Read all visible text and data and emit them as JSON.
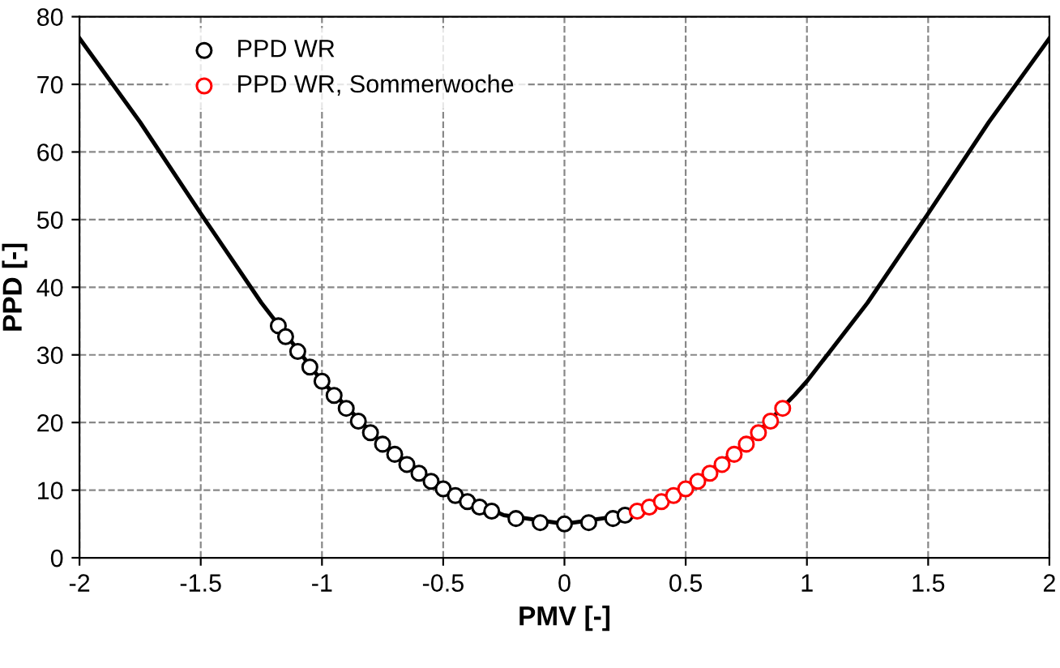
{
  "chart_data": {
    "type": "scatter",
    "xlabel": "PMV [-]",
    "ylabel": "PPD [-]",
    "xlim": [
      -2,
      2
    ],
    "ylim": [
      0,
      80
    ],
    "xticks": [
      -2,
      -1.5,
      -1,
      -0.5,
      0,
      0.5,
      1,
      1.5,
      2
    ],
    "yticks": [
      0,
      10,
      20,
      30,
      40,
      50,
      60,
      70,
      80
    ],
    "grid": true,
    "legend": "top left",
    "line_style": "solid",
    "series": [
      {
        "type": "line",
        "marker": "none",
        "color": "#000000",
        "x": [
          -2,
          -1.75,
          -1.5,
          -1.25,
          -1,
          -0.75,
          -0.5,
          -0.25,
          0,
          0.25,
          0.375,
          0.525,
          0.775,
          0.95,
          1,
          1.25,
          1.5,
          1.75,
          2
        ],
        "values": [
          76.8,
          64.4,
          50.9,
          37.7,
          26.1,
          16.8,
          10.2,
          6.3,
          5,
          6.3,
          7.9,
          10.8,
          17.7,
          24.1,
          26.1,
          37.7,
          50.9,
          64.4,
          76.8
        ]
      },
      {
        "name": "PPD WR",
        "marker": "circle",
        "color": "#000000",
        "x": [
          -1.18,
          -1.15,
          -1.1,
          -1.05,
          -1,
          -0.95,
          -0.9,
          -0.85,
          -0.8,
          -0.75,
          -0.7,
          -0.65,
          -0.6,
          -0.55,
          -0.5,
          -0.45,
          -0.4,
          -0.35,
          -0.3,
          -0.2,
          -0.1,
          0,
          0.1,
          0.2,
          0.25
        ],
        "values": [
          34.3,
          32.7,
          30.5,
          28.2,
          26.1,
          24,
          22.1,
          20.2,
          18.5,
          16.8,
          15.3,
          13.8,
          12.5,
          11.3,
          10.2,
          9.2,
          8.3,
          7.5,
          6.9,
          5.8,
          5.2,
          5,
          5.2,
          5.8,
          6.3
        ]
      },
      {
        "name": "PPD WR, Sommerwoche",
        "marker": "circle",
        "color": "#ff0000",
        "x": [
          0.3,
          0.35,
          0.4,
          0.45,
          0.5,
          0.55,
          0.6,
          0.65,
          0.7,
          0.75,
          0.8,
          0.85,
          0.9
        ],
        "values": [
          6.9,
          7.5,
          8.3,
          9.2,
          10.2,
          11.3,
          12.5,
          13.8,
          15.3,
          16.8,
          18.5,
          20.2,
          22.1
        ]
      }
    ]
  }
}
